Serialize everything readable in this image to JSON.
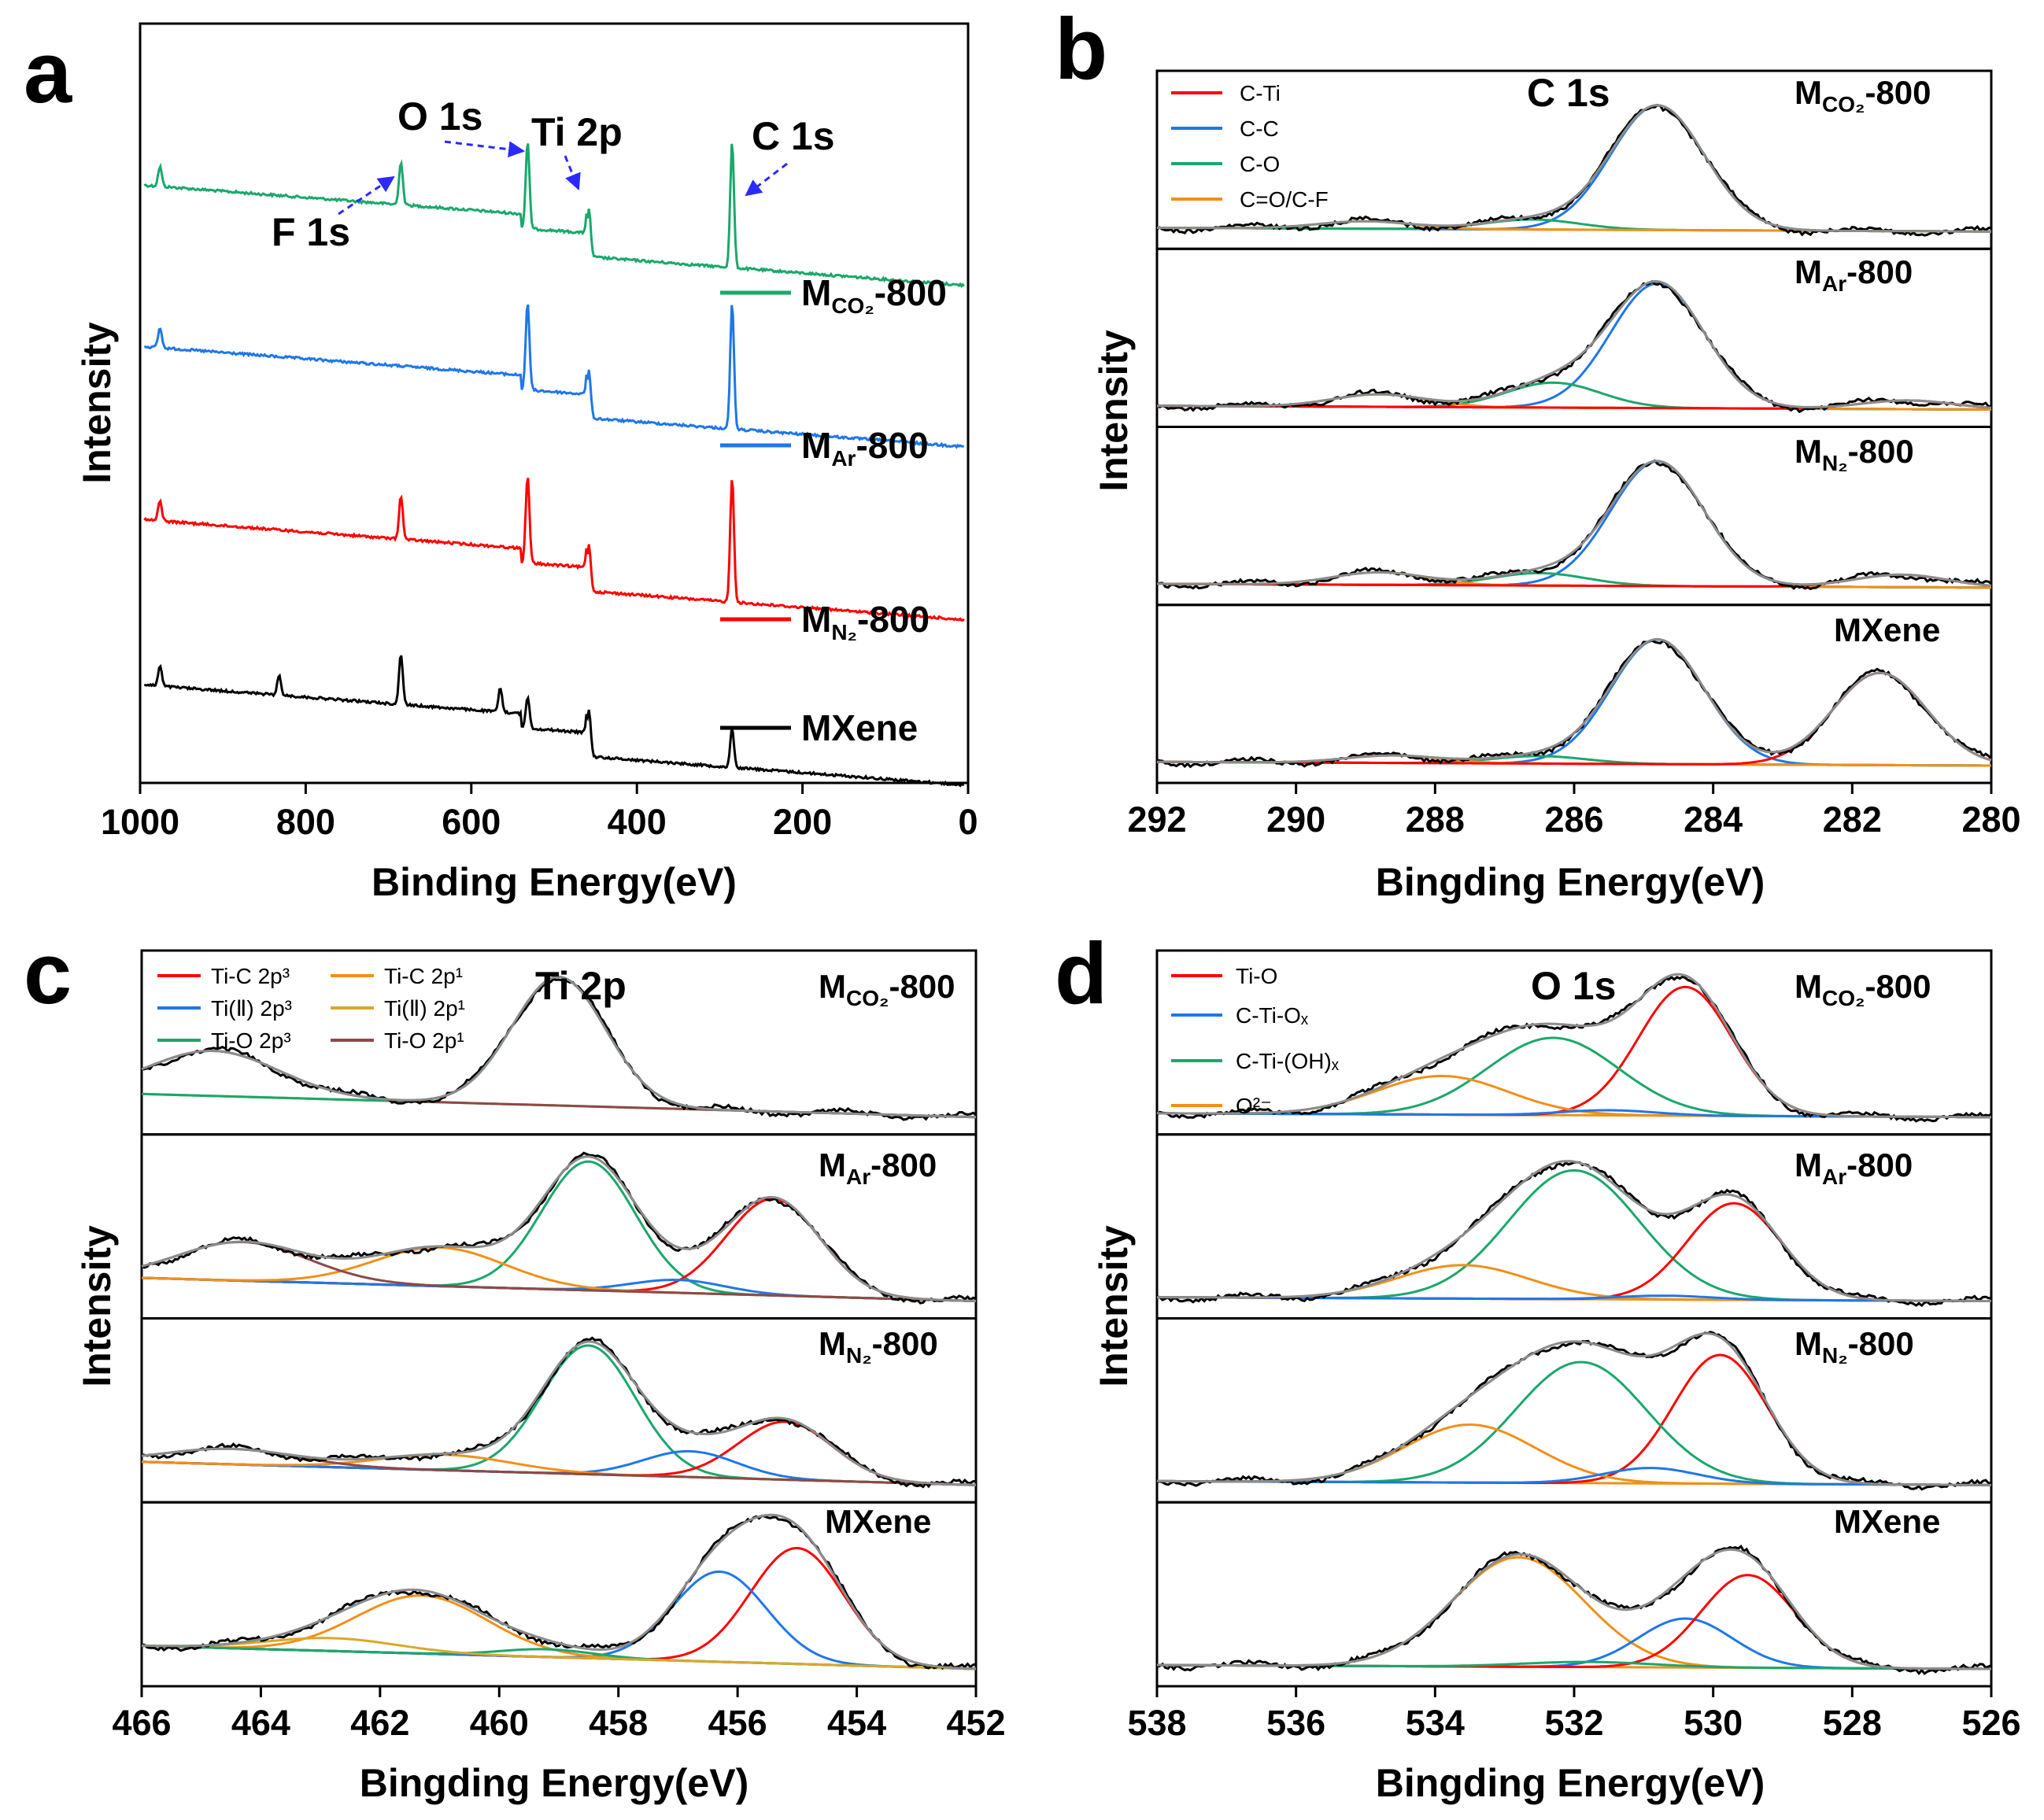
{
  "panels": {
    "a": {
      "label": "a"
    },
    "b": {
      "label": "b"
    },
    "c": {
      "label": "c"
    },
    "d": {
      "label": "d"
    }
  },
  "samples": {
    "co2": {
      "main": "M",
      "sub": "CO₂",
      "suffix": "-800"
    },
    "ar": {
      "main": "M",
      "sub": "Ar",
      "suffix": "-800"
    },
    "n2": {
      "main": "M",
      "sub": "N₂",
      "suffix": "-800"
    },
    "mx": {
      "name": "MXene"
    }
  },
  "colors": {
    "black": "#000000",
    "red": "#ff0000",
    "blue": "#1f77e8",
    "green": "#1aa86b",
    "orange": "#f0901a",
    "brown": "#8b4a4a",
    "olive": "#9a9a20",
    "gray": "#8c8c8c",
    "arrow": "#2a2aff"
  },
  "chart_data": [
    {
      "panel": "a",
      "type": "line",
      "title": "",
      "xlabel": "Binding Energy(eV)",
      "ylabel": "Intensity",
      "xlim": [
        1000,
        0
      ],
      "xticks": [
        "1000",
        "800",
        "600",
        "400",
        "200",
        "0"
      ],
      "annotations": [
        "O 1s",
        "Ti 2p",
        "C 1s",
        "F 1s"
      ],
      "series": [
        {
          "name": "M_CO2-800",
          "color": "#1aa86b",
          "peaks_eV": [
            976,
            685,
            532,
            458,
            285
          ]
        },
        {
          "name": "M_Ar-800",
          "color": "#1f77e8",
          "peaks_eV": [
            976,
            532,
            458,
            285
          ]
        },
        {
          "name": "M_N2-800",
          "color": "#ff0000",
          "peaks_eV": [
            976,
            685,
            532,
            458,
            285
          ]
        },
        {
          "name": "MXene",
          "color": "#000000",
          "peaks_eV": [
            976,
            832,
            685,
            565,
            532,
            458,
            285
          ]
        }
      ]
    },
    {
      "panel": "b",
      "type": "line",
      "title": "C 1s",
      "xlabel": "Bingding Energy(eV)",
      "ylabel": "Intensity",
      "xlim": [
        292,
        280
      ],
      "xticks": [
        "292",
        "290",
        "288",
        "286",
        "284",
        "282",
        "280"
      ],
      "legend": [
        "C-Ti",
        "C-C",
        "C-O",
        "C=O/C-F"
      ],
      "legend_colors": [
        "#ff0000",
        "#1f77e8",
        "#1aa86b",
        "#f0901a"
      ],
      "subpanels": [
        {
          "sample": "M_CO2-800",
          "components": [
            {
              "name": "C-C",
              "center": 284.8,
              "height": 1.0
            },
            {
              "name": "C-O",
              "center": 286.6,
              "height": 0.08
            },
            {
              "name": "C=O/C-F",
              "center": 289.0,
              "height": 0.06
            }
          ]
        },
        {
          "sample": "M_Ar-800",
          "components": [
            {
              "name": "C-C",
              "center": 284.8,
              "height": 1.0
            },
            {
              "name": "C-O",
              "center": 286.3,
              "height": 0.2
            },
            {
              "name": "C=O/C-F",
              "center": 288.8,
              "height": 0.1
            },
            {
              "name": "C-Ti",
              "center": 281.2,
              "height": 0.07
            }
          ]
        },
        {
          "sample": "M_N2-800",
          "components": [
            {
              "name": "C-C",
              "center": 284.8,
              "height": 1.0
            },
            {
              "name": "C-O",
              "center": 286.5,
              "height": 0.1
            },
            {
              "name": "C=O/C-F",
              "center": 288.8,
              "height": 0.1
            },
            {
              "name": "C-Ti",
              "center": 281.3,
              "height": 0.1
            }
          ]
        },
        {
          "sample": "MXene",
          "components": [
            {
              "name": "C-C",
              "center": 284.8,
              "height": 1.0
            },
            {
              "name": "C-O",
              "center": 286.5,
              "height": 0.06
            },
            {
              "name": "C=O/C-F",
              "center": 288.6,
              "height": 0.06
            },
            {
              "name": "C-Ti",
              "center": 281.6,
              "height": 0.74
            }
          ]
        }
      ]
    },
    {
      "panel": "c",
      "type": "line",
      "title": "Ti 2p",
      "xlabel": "Bingding Energy(eV)",
      "ylabel": "Intensity",
      "xlim": [
        466,
        452
      ],
      "xticks": [
        "466",
        "464",
        "462",
        "460",
        "458",
        "456",
        "454",
        "452"
      ],
      "legend": [
        "Ti-C 2p³",
        "Ti(Ⅱ) 2p³",
        "Ti-O 2p³",
        "Ti-C 2p¹",
        "Ti(Ⅱ) 2p¹",
        "Ti-O 2p¹"
      ],
      "legend_colors": [
        "#ff0000",
        "#1f77e8",
        "#1aa86b",
        "#f0901a",
        "#f0901a",
        "#8b4a4a"
      ],
      "subpanels": [
        {
          "sample": "M_CO2-800",
          "components": [
            {
              "name": "Ti-O 2p³",
              "center": 459.0,
              "height": 1.0
            },
            {
              "name": "Ti-O 2p¹",
              "center": 464.8,
              "height": 0.35
            }
          ]
        },
        {
          "sample": "M_Ar-800",
          "components": [
            {
              "name": "Ti-O 2p³",
              "center": 458.5,
              "height": 1.0
            },
            {
              "name": "Ti-C 2p³",
              "center": 455.4,
              "height": 0.75
            },
            {
              "name": "Ti(Ⅱ) 2p³",
              "center": 457.0,
              "height": 0.1
            },
            {
              "name": "Ti-C 2p¹",
              "center": 461.0,
              "height": 0.3
            },
            {
              "name": "Ti-O 2p¹",
              "center": 464.3,
              "height": 0.3
            }
          ]
        },
        {
          "sample": "M_N2-800",
          "components": [
            {
              "name": "Ti-O 2p³",
              "center": 458.5,
              "height": 1.0
            },
            {
              "name": "Ti-C 2p³",
              "center": 455.2,
              "height": 0.45
            },
            {
              "name": "Ti(Ⅱ) 2p³",
              "center": 456.8,
              "height": 0.2
            },
            {
              "name": "Ti-C 2p¹",
              "center": 460.9,
              "height": 0.12
            },
            {
              "name": "Ti-O 2p¹",
              "center": 464.5,
              "height": 0.12
            }
          ]
        },
        {
          "sample": "MXene",
          "components": [
            {
              "name": "Ti-C 2p³",
              "center": 455.0,
              "height": 0.9
            },
            {
              "name": "Ti(Ⅱ) 2p³",
              "center": 456.3,
              "height": 0.7
            },
            {
              "name": "Ti-C 2p¹",
              "center": 461.3,
              "height": 0.45
            },
            {
              "name": "Ti-O 2p³",
              "center": 459.2,
              "height": 0.06
            },
            {
              "name": "Ti(Ⅱ) 2p¹",
              "center": 462.8,
              "height": 0.1
            }
          ]
        }
      ]
    },
    {
      "panel": "d",
      "type": "line",
      "title": "O 1s",
      "xlabel": "Bingding Energy(eV)",
      "ylabel": "Intensity",
      "xlim": [
        538,
        526
      ],
      "xticks": [
        "538",
        "536",
        "534",
        "532",
        "530",
        "528",
        "526"
      ],
      "legend": [
        "Ti-O",
        "C-Ti-Oₓ",
        "C-Ti-(OH)ₓ",
        "O²⁻"
      ],
      "legend_colors": [
        "#ff0000",
        "#1f77e8",
        "#1aa86b",
        "#f0901a"
      ],
      "subpanels": [
        {
          "sample": "M_CO2-800",
          "components": [
            {
              "name": "Ti-O",
              "center": 530.4,
              "height": 1.0
            },
            {
              "name": "C-Ti-(OH)ₓ",
              "center": 532.3,
              "height": 0.6
            },
            {
              "name": "O²⁻",
              "center": 533.9,
              "height": 0.3
            },
            {
              "name": "C-Ti-Oₓ",
              "center": 531.5,
              "height": 0.04
            }
          ]
        },
        {
          "sample": "M_Ar-800",
          "components": [
            {
              "name": "C-Ti-(OH)ₓ",
              "center": 532.0,
              "height": 1.0
            },
            {
              "name": "Ti-O",
              "center": 529.7,
              "height": 0.75
            },
            {
              "name": "O²⁻",
              "center": 533.6,
              "height": 0.26
            },
            {
              "name": "C-Ti-Oₓ",
              "center": 530.7,
              "height": 0.03
            }
          ]
        },
        {
          "sample": "M_N2-800",
          "components": [
            {
              "name": "Ti-O",
              "center": 529.9,
              "height": 1.0
            },
            {
              "name": "C-Ti-(OH)ₓ",
              "center": 531.9,
              "height": 0.94
            },
            {
              "name": "O²⁻",
              "center": 533.5,
              "height": 0.45
            },
            {
              "name": "C-Ti-Oₓ",
              "center": 530.9,
              "height": 0.12
            }
          ]
        },
        {
          "sample": "MXene",
          "components": [
            {
              "name": "O²⁻",
              "center": 532.8,
              "height": 0.85
            },
            {
              "name": "C-Ti-Oₓ",
              "center": 530.4,
              "height": 0.38
            },
            {
              "name": "Ti-O",
              "center": 529.5,
              "height": 0.72
            },
            {
              "name": "C-Ti-(OH)ₓ",
              "center": 531.8,
              "height": 0.04
            }
          ]
        }
      ]
    }
  ]
}
